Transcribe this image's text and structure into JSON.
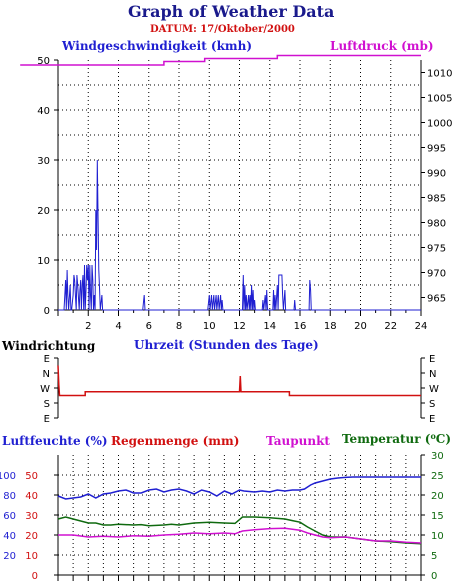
{
  "title": "Graph of Weather Data",
  "date_label": "DATUM: 17/Oktober/2000",
  "chart_data": [
    {
      "type": "line",
      "name_left": "Windgeschwindigkeit (kmh)",
      "name_right": "Luftdruck (mb)",
      "xlabel": "Uhrzeit (Stunden des Tage)",
      "x_ticks": [
        "2",
        "4",
        "6",
        "8",
        "10",
        "12",
        "14",
        "16",
        "18",
        "20",
        "22",
        "24"
      ],
      "xlim": [
        0,
        24
      ],
      "ylim_left": [
        0,
        50
      ],
      "y_ticks_left": [
        "0",
        "10",
        "20",
        "30",
        "40",
        "50"
      ],
      "ylim_right": [
        962.5,
        1012.5
      ],
      "y_ticks_right": [
        "965",
        "970",
        "975",
        "980",
        "985",
        "990",
        "995",
        "1000",
        "1005",
        "1010"
      ],
      "grid": true,
      "series": [
        {
          "name": "Windgeschwindigkeit (kmh)",
          "color": "#1f1fd1",
          "points": [
            [
              0.0,
              0
            ],
            [
              0.4,
              0
            ],
            [
              0.5,
              6
            ],
            [
              0.55,
              0
            ],
            [
              0.6,
              8
            ],
            [
              0.65,
              3
            ],
            [
              0.7,
              0
            ],
            [
              0.8,
              5
            ],
            [
              0.85,
              0
            ],
            [
              0.9,
              0
            ],
            [
              1.0,
              3
            ],
            [
              1.05,
              7
            ],
            [
              1.1,
              6
            ],
            [
              1.2,
              0
            ],
            [
              1.25,
              7
            ],
            [
              1.3,
              5
            ],
            [
              1.4,
              0
            ],
            [
              1.45,
              4
            ],
            [
              1.5,
              6
            ],
            [
              1.55,
              0
            ],
            [
              1.6,
              5
            ],
            [
              1.65,
              7
            ],
            [
              1.7,
              0
            ],
            [
              1.75,
              9
            ],
            [
              1.8,
              0
            ],
            [
              1.85,
              4
            ],
            [
              1.9,
              9
            ],
            [
              1.95,
              6
            ],
            [
              2.0,
              9
            ],
            [
              2.05,
              0
            ],
            [
              2.1,
              9
            ],
            [
              2.15,
              3
            ],
            [
              2.2,
              0
            ],
            [
              2.25,
              9
            ],
            [
              2.3,
              6
            ],
            [
              2.35,
              0
            ],
            [
              2.4,
              3
            ],
            [
              2.45,
              0
            ],
            [
              2.5,
              20
            ],
            [
              2.55,
              12
            ],
            [
              2.6,
              30
            ],
            [
              2.65,
              18
            ],
            [
              2.7,
              8
            ],
            [
              2.75,
              4
            ],
            [
              2.8,
              0
            ],
            [
              2.9,
              3
            ],
            [
              2.95,
              0
            ],
            [
              3.0,
              0
            ],
            [
              5.6,
              0
            ],
            [
              5.7,
              3
            ],
            [
              5.75,
              0
            ],
            [
              9.9,
              0
            ],
            [
              10.0,
              3
            ],
            [
              10.05,
              0
            ],
            [
              10.15,
              3
            ],
            [
              10.2,
              0
            ],
            [
              10.3,
              3
            ],
            [
              10.35,
              0
            ],
            [
              10.45,
              3
            ],
            [
              10.5,
              0
            ],
            [
              10.6,
              3
            ],
            [
              10.65,
              0
            ],
            [
              10.75,
              3
            ],
            [
              10.8,
              0
            ],
            [
              10.85,
              2
            ],
            [
              10.9,
              0
            ],
            [
              12.2,
              0
            ],
            [
              12.25,
              7
            ],
            [
              12.3,
              0
            ],
            [
              12.35,
              5
            ],
            [
              12.4,
              0
            ],
            [
              12.45,
              3
            ],
            [
              12.5,
              0
            ],
            [
              12.6,
              3
            ],
            [
              12.65,
              0
            ],
            [
              12.7,
              3
            ],
            [
              12.75,
              0
            ],
            [
              12.8,
              5
            ],
            [
              12.85,
              0
            ],
            [
              12.9,
              4
            ],
            [
              12.95,
              0
            ],
            [
              13.0,
              2
            ],
            [
              13.05,
              0
            ],
            [
              13.5,
              0
            ],
            [
              13.55,
              2
            ],
            [
              13.6,
              0
            ],
            [
              13.7,
              3
            ],
            [
              13.75,
              0
            ],
            [
              13.8,
              4
            ],
            [
              13.85,
              0
            ],
            [
              14.2,
              0
            ],
            [
              14.25,
              4
            ],
            [
              14.3,
              0
            ],
            [
              14.35,
              3
            ],
            [
              14.4,
              0
            ],
            [
              14.5,
              5
            ],
            [
              14.55,
              0
            ],
            [
              14.6,
              7
            ],
            [
              14.7,
              7
            ],
            [
              14.8,
              7
            ],
            [
              14.85,
              3
            ],
            [
              14.9,
              0
            ],
            [
              15.0,
              4
            ],
            [
              15.05,
              0
            ],
            [
              15.6,
              0
            ],
            [
              15.65,
              2
            ],
            [
              15.7,
              0
            ],
            [
              16.6,
              0
            ],
            [
              16.65,
              6
            ],
            [
              16.7,
              4
            ],
            [
              16.75,
              0
            ],
            [
              24,
              0
            ]
          ]
        },
        {
          "name": "Luftdruck (mb)",
          "color": "#d010d0",
          "points": [
            [
              -2.5,
              1011.5
            ],
            [
              7.0,
              1011.5
            ],
            [
              7.0,
              1012.2
            ],
            [
              9.7,
              1012.2
            ],
            [
              9.7,
              1012.8
            ],
            [
              14.5,
              1012.8
            ],
            [
              14.5,
              1013.4
            ],
            [
              24,
              1013.4
            ]
          ]
        }
      ]
    },
    {
      "type": "line",
      "name": "Windrichtung",
      "y_ticks_left": [
        "E",
        "N",
        "W",
        "S",
        "E"
      ],
      "y_ticks_right": [
        "E",
        "N",
        "W",
        "S",
        "E"
      ],
      "xlim": [
        0,
        24
      ],
      "series": [
        {
          "name": "Windrichtung",
          "color": "#d11010",
          "points": [
            [
              0.0,
              3.5
            ],
            [
              0.05,
              2.2
            ],
            [
              0.1,
              1.5
            ],
            [
              1.8,
              1.5
            ],
            [
              1.8,
              1.75
            ],
            [
              12.0,
              1.75
            ],
            [
              12.05,
              2.8
            ],
            [
              12.1,
              1.75
            ],
            [
              15.3,
              1.75
            ],
            [
              15.3,
              1.5
            ],
            [
              24,
              1.5
            ]
          ]
        }
      ]
    },
    {
      "type": "line",
      "label_humidity": "Luftfeuchte (%)",
      "label_rain": "Regenmenge (mm)",
      "label_dew": "Taupunkt",
      "label_temp": "Temperatur (",
      "label_temp_unit": "o",
      "label_temp_close": "C)",
      "xlim": [
        0,
        24
      ],
      "ylim_left": [
        0,
        60
      ],
      "y_ticks_humidity": [
        "20",
        "40",
        "60",
        "80",
        "100"
      ],
      "y_ticks_rain": [
        "0",
        "10",
        "20",
        "30",
        "40",
        "50"
      ],
      "ylim_right": [
        0,
        30
      ],
      "y_ticks_right": [
        "0",
        "5",
        "10",
        "15",
        "20",
        "25",
        "30"
      ],
      "grid": true,
      "series": [
        {
          "name": "Luftfeuchte (%)",
          "color": "#1f1fd1",
          "scale": "left",
          "points": [
            [
              0,
              39.5
            ],
            [
              0.5,
              38
            ],
            [
              1.0,
              38.5
            ],
            [
              1.5,
              39
            ],
            [
              2.0,
              40.5
            ],
            [
              2.5,
              38.5
            ],
            [
              3.0,
              40.5
            ],
            [
              3.5,
              41
            ],
            [
              4.0,
              42
            ],
            [
              4.5,
              42.5
            ],
            [
              5.0,
              41
            ],
            [
              5.5,
              41
            ],
            [
              6.0,
              42.5
            ],
            [
              6.5,
              43
            ],
            [
              7.0,
              41.5
            ],
            [
              7.5,
              42.5
            ],
            [
              8.0,
              43
            ],
            [
              8.5,
              42
            ],
            [
              9.0,
              40.5
            ],
            [
              9.5,
              42.5
            ],
            [
              10.0,
              41.5
            ],
            [
              10.5,
              39.5
            ],
            [
              11.0,
              42
            ],
            [
              11.5,
              40.5
            ],
            [
              12.0,
              42.5
            ],
            [
              12.3,
              42
            ],
            [
              13.0,
              41.5
            ],
            [
              13.5,
              42
            ],
            [
              14.0,
              41.5
            ],
            [
              14.5,
              42.5
            ],
            [
              15.0,
              42
            ],
            [
              15.5,
              42.5
            ],
            [
              16.0,
              42.5
            ],
            [
              16.3,
              43
            ],
            [
              16.7,
              45
            ],
            [
              17.0,
              46
            ],
            [
              17.5,
              47
            ],
            [
              18.0,
              48
            ],
            [
              18.5,
              48.5
            ],
            [
              19.0,
              48.8
            ],
            [
              19.5,
              49
            ],
            [
              24,
              49
            ]
          ]
        },
        {
          "name": "Temperatur",
          "color": "#0f6a0f",
          "scale": "right",
          "points": [
            [
              0,
              14
            ],
            [
              0.5,
              14.5
            ],
            [
              1.0,
              14
            ],
            [
              1.5,
              13.5
            ],
            [
              2.0,
              13
            ],
            [
              2.5,
              13
            ],
            [
              3.0,
              12.5
            ],
            [
              3.5,
              12.5
            ],
            [
              4.0,
              12.7
            ],
            [
              5.0,
              12.5
            ],
            [
              5.5,
              12.6
            ],
            [
              6.0,
              12.3
            ],
            [
              7.0,
              12.5
            ],
            [
              7.5,
              12.7
            ],
            [
              8.0,
              12.5
            ],
            [
              9.0,
              13
            ],
            [
              10.0,
              13.2
            ],
            [
              11.0,
              13
            ],
            [
              11.7,
              12.9
            ],
            [
              12.2,
              14.5
            ],
            [
              13.0,
              14.5
            ],
            [
              14.0,
              14.3
            ],
            [
              15.0,
              14.0
            ],
            [
              15.5,
              13.6
            ],
            [
              16.0,
              13.2
            ],
            [
              16.5,
              12
            ],
            [
              17.0,
              11
            ],
            [
              17.5,
              10
            ],
            [
              18.0,
              9.5
            ],
            [
              19.0,
              9.5
            ],
            [
              20.0,
              9
            ],
            [
              21.0,
              8.5
            ],
            [
              22.0,
              8.3
            ],
            [
              23.0,
              8
            ],
            [
              24,
              7.8
            ]
          ]
        },
        {
          "name": "Taupunkt",
          "color": "#d010d0",
          "scale": "right",
          "points": [
            [
              0,
              10
            ],
            [
              1.0,
              10
            ],
            [
              2.0,
              9.5
            ],
            [
              3.0,
              9.7
            ],
            [
              4.0,
              9.5
            ],
            [
              5.0,
              9.8
            ],
            [
              6.0,
              9.7
            ],
            [
              7.0,
              10
            ],
            [
              8.0,
              10.2
            ],
            [
              9.0,
              10.5
            ],
            [
              10.0,
              10.3
            ],
            [
              11.0,
              10.5
            ],
            [
              11.7,
              10.3
            ],
            [
              12.2,
              11
            ],
            [
              13.0,
              11.3
            ],
            [
              14.0,
              11.6
            ],
            [
              15.0,
              11.7
            ],
            [
              16.0,
              11.2
            ],
            [
              16.5,
              10.5
            ],
            [
              17.0,
              10
            ],
            [
              17.5,
              9.5
            ],
            [
              18.0,
              9.3
            ],
            [
              19.0,
              9.5
            ],
            [
              20.0,
              9
            ],
            [
              21.0,
              8.5
            ],
            [
              22.0,
              8.5
            ],
            [
              23.0,
              8.2
            ],
            [
              24,
              8
            ]
          ]
        }
      ]
    }
  ]
}
